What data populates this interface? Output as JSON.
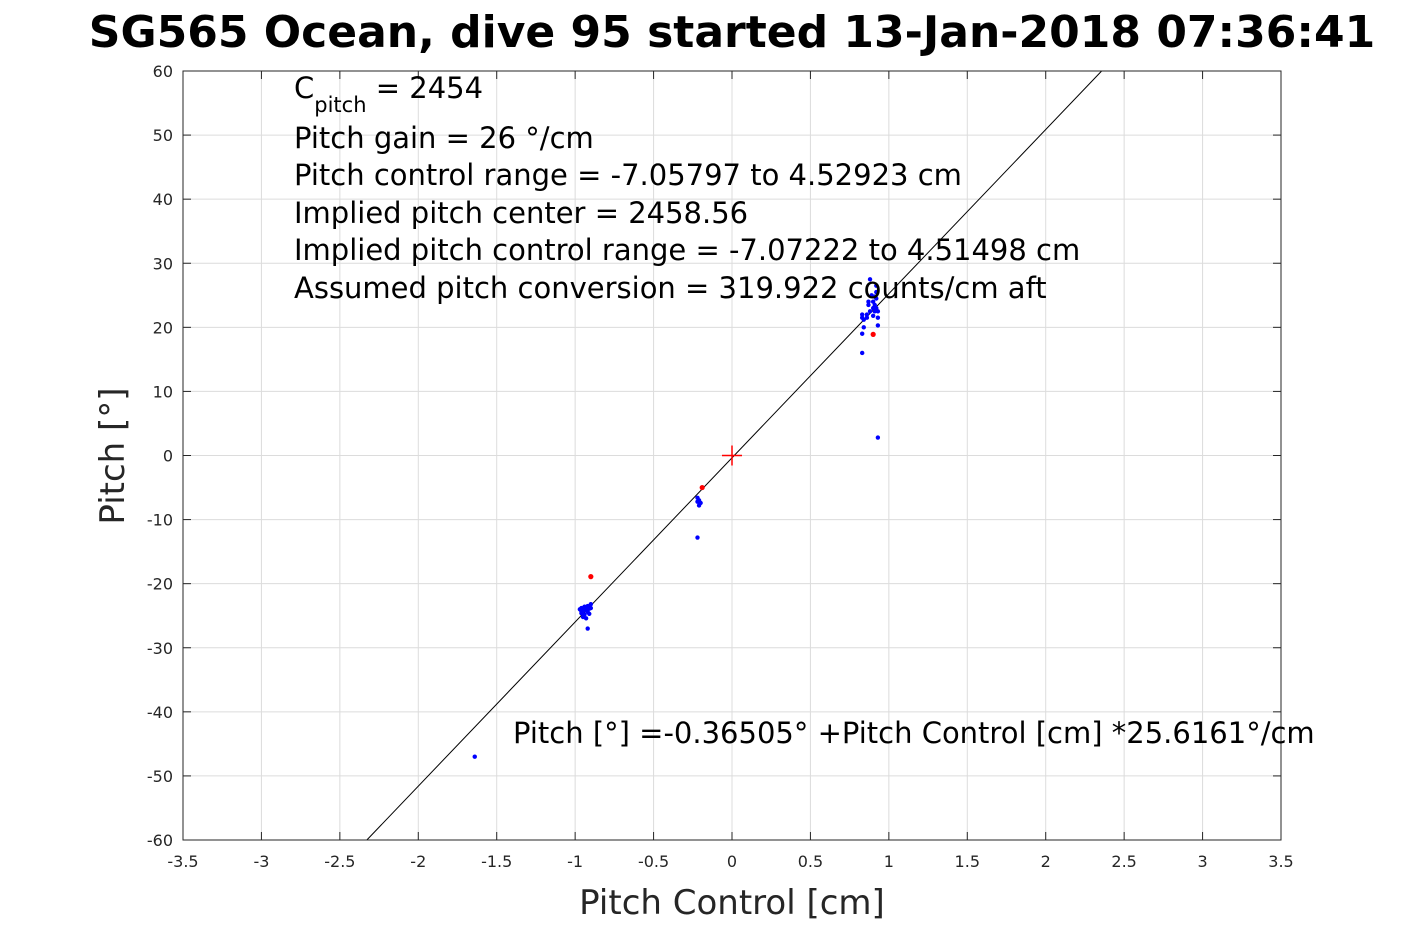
{
  "chart_data": {
    "type": "scatter",
    "title": "SG565 Ocean, dive 95 started 13-Jan-2018 07:36:41",
    "xlabel": "Pitch Control [cm]",
    "ylabel": "Pitch [°]",
    "xlim": [
      -3.5,
      3.5
    ],
    "ylim": [
      -60,
      60
    ],
    "xticks": [
      -3.5,
      -3,
      -2.5,
      -2,
      -1.5,
      -1,
      -0.5,
      0,
      0.5,
      1,
      1.5,
      2,
      2.5,
      3,
      3.5
    ],
    "yticks": [
      -60,
      -50,
      -40,
      -30,
      -20,
      -10,
      0,
      10,
      20,
      30,
      40,
      50,
      60
    ],
    "xtick_labels": [
      "-3.5",
      "-3",
      "-2.5",
      "-2",
      "-1.5",
      "-1",
      "-0.5",
      "0",
      "0.5",
      "1",
      "1.5",
      "2",
      "2.5",
      "3",
      "3.5"
    ],
    "ytick_labels": [
      "-60",
      "-50",
      "-40",
      "-30",
      "-20",
      "-10",
      "0",
      "10",
      "20",
      "30",
      "40",
      "50",
      "60"
    ],
    "grid": true,
    "annotations": {
      "c_pitch_base": "C",
      "c_pitch_sub": "pitch",
      "c_pitch_value": " = 2454",
      "lines": [
        "Pitch gain = 26 °/cm",
        "Pitch control range = -7.05797 to 4.52923 cm",
        "Implied pitch center = 2458.56",
        "Implied pitch control range = -7.07222 to 4.51498 cm",
        "Assumed pitch conversion = 319.922 counts/cm aft"
      ],
      "fit_equation": "Pitch [°] =-0.36505° +Pitch Control [cm] *25.6161°/cm"
    },
    "fit_line": {
      "intercept": -0.36505,
      "slope": 25.6161,
      "color": "#000000"
    },
    "center_marker": {
      "x": 0,
      "y": 0,
      "color": "#ff0000"
    },
    "series": [
      {
        "color": "#0000ff",
        "points": [
          [
            -0.97,
            -24.0
          ],
          [
            -0.96,
            -23.8
          ],
          [
            -0.96,
            -24.6
          ],
          [
            -0.95,
            -25.2
          ],
          [
            -0.95,
            -24.2
          ],
          [
            -0.94,
            -23.6
          ],
          [
            -0.94,
            -24.8
          ],
          [
            -0.93,
            -24.0
          ],
          [
            -0.93,
            -25.4
          ],
          [
            -0.92,
            -23.5
          ],
          [
            -0.92,
            -24.4
          ],
          [
            -0.91,
            -23.9
          ],
          [
            -0.91,
            -24.7
          ],
          [
            -0.9,
            -23.2
          ],
          [
            -0.9,
            -23.8
          ],
          [
            -0.95,
            -23.9
          ],
          [
            -0.96,
            -24.3
          ],
          [
            -0.93,
            -23.7
          ],
          [
            -0.92,
            -27.0
          ],
          [
            -0.94,
            -24.1
          ],
          [
            -1.64,
            -47.0
          ],
          [
            -0.22,
            -6.6
          ],
          [
            -0.22,
            -7.2
          ],
          [
            -0.21,
            -7.8
          ],
          [
            -0.2,
            -7.4
          ],
          [
            -0.21,
            -7.0
          ],
          [
            -0.22,
            -12.8
          ],
          [
            0.83,
            21.5
          ],
          [
            0.83,
            22.0
          ],
          [
            0.84,
            21.2
          ],
          [
            0.84,
            20.0
          ],
          [
            0.83,
            19.0
          ],
          [
            0.83,
            16.0
          ],
          [
            0.86,
            21.5
          ],
          [
            0.86,
            22.0
          ],
          [
            0.87,
            23.5
          ],
          [
            0.87,
            24.0
          ],
          [
            0.88,
            22.5
          ],
          [
            0.88,
            27.5
          ],
          [
            0.89,
            25.0
          ],
          [
            0.9,
            24.0
          ],
          [
            0.9,
            23.0
          ],
          [
            0.91,
            22.5
          ],
          [
            0.91,
            23.5
          ],
          [
            0.92,
            24.5
          ],
          [
            0.92,
            25.5
          ],
          [
            0.92,
            26.5
          ],
          [
            0.93,
            22.5
          ],
          [
            0.93,
            21.5
          ],
          [
            0.93,
            20.3
          ],
          [
            0.9,
            21.8
          ],
          [
            0.91,
            24.8
          ],
          [
            0.92,
            23.0
          ],
          [
            0.93,
            2.8
          ]
        ]
      },
      {
        "color": "#ff0000",
        "points": [
          [
            -0.9,
            -18.9
          ],
          [
            -0.19,
            -5.0
          ],
          [
            0.9,
            18.9
          ]
        ]
      }
    ]
  }
}
